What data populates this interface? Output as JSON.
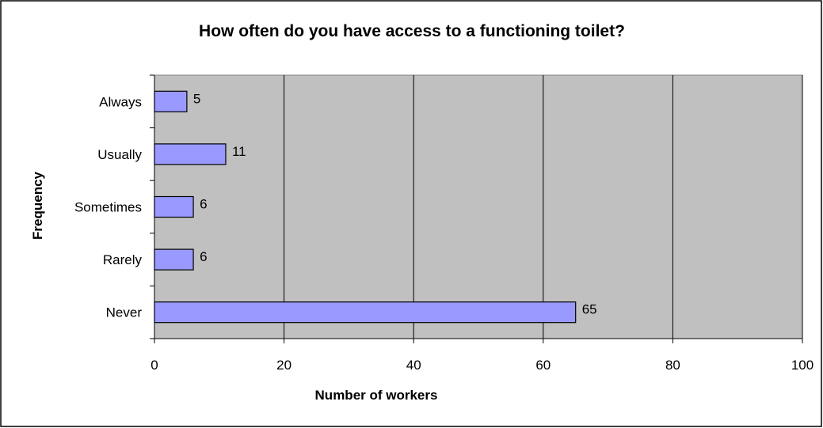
{
  "chart_data": {
    "type": "bar",
    "orientation": "horizontal",
    "title": "How often do you have access to a functioning toilet?",
    "xlabel": "Number of workers",
    "ylabel": "Frequency",
    "categories": [
      "Always",
      "Usually",
      "Sometimes",
      "Rarely",
      "Never"
    ],
    "values": [
      5,
      11,
      6,
      6,
      65
    ],
    "xlim": [
      0,
      100
    ],
    "xticks": [
      "0",
      "20",
      "40",
      "60",
      "80",
      "100"
    ],
    "grid": "vertical",
    "legend": "none",
    "data_labels": [
      "5",
      "11",
      "6",
      "6",
      "65"
    ],
    "colors": {
      "bar_fill": "#9999FF",
      "bar_stroke": "#000000",
      "plot_background": "#C0C0C0",
      "gridline": "#000000",
      "page_background": "#FFFFFF"
    }
  }
}
